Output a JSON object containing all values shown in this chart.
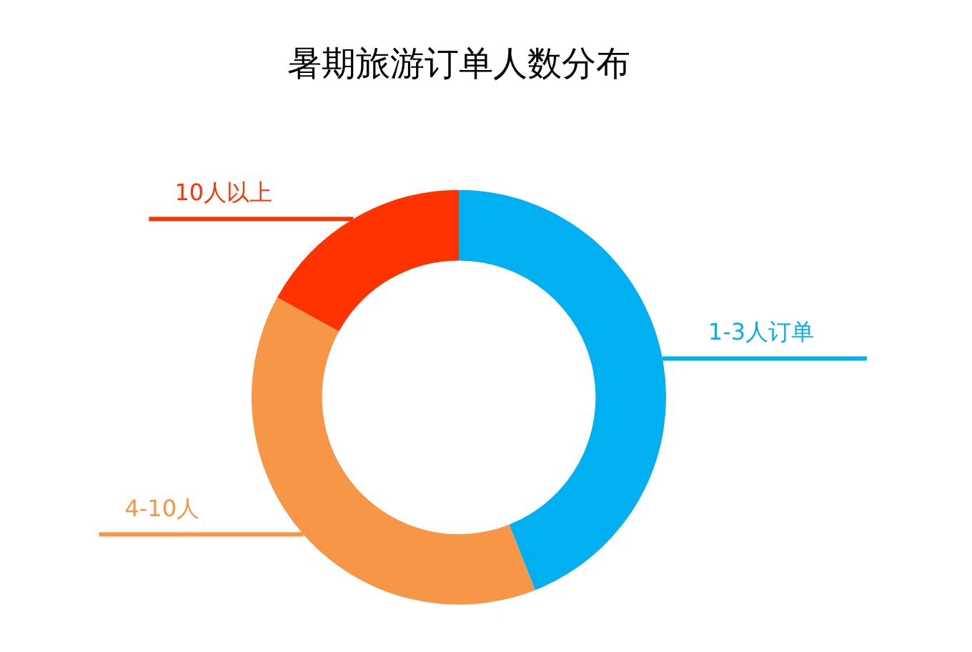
{
  "chart_data": {
    "type": "donut",
    "title": "暑期旅游订单人数分布",
    "categories": [
      "1-3人订单",
      "4-10人",
      "10人以上"
    ],
    "values": [
      44,
      39,
      17
    ],
    "colors": [
      "#00b0f0",
      "#f79646",
      "#ff3300"
    ]
  }
}
